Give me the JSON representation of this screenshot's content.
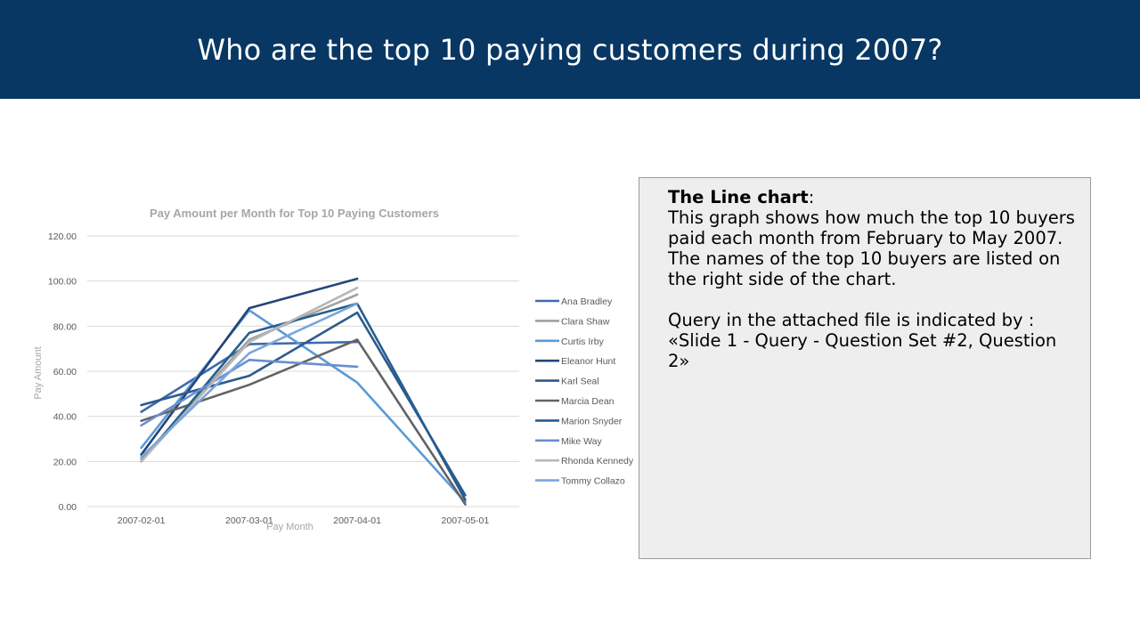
{
  "slide": {
    "title": "Who are the top 10 paying customers during 2007?"
  },
  "textbox": {
    "heading": "The Line chart",
    "heading_suffix": ":",
    "body": "This graph shows how much the top 10 buyers paid each month from February to May 2007. The names of the top 10 buyers are listed on the right side of the chart.",
    "query_line1": "Query in the attached file is indicated by :",
    "query_line2": "«Slide 1 - Query - Question Set #2, Question 2»"
  },
  "chart_data": {
    "type": "line",
    "title": "Pay Amount per Month for Top 10 Paying Customers",
    "xlabel": "Pay Month",
    "ylabel": "Pay Amount",
    "categories": [
      "2007-02-01",
      "2007-03-01",
      "2007-04-01",
      "2007-05-01"
    ],
    "ylim": [
      0,
      120
    ],
    "yticks": [
      "0.00",
      "20.00",
      "40.00",
      "60.00",
      "80.00",
      "100.00",
      "120.00"
    ],
    "grid": true,
    "legend_position": "right",
    "series": [
      {
        "name": "Ana Bradley",
        "color": "#3f6ab0",
        "values": [
          42,
          72,
          73,
          null
        ]
      },
      {
        "name": "Clara Shaw",
        "color": "#a0a0a0",
        "values": [
          21,
          74,
          94,
          null
        ]
      },
      {
        "name": "Curtis Irby",
        "color": "#5b9bd5",
        "values": [
          26,
          87,
          55,
          2
        ]
      },
      {
        "name": "Eleanor Hunt",
        "color": "#264478",
        "values": [
          23,
          88,
          101,
          null
        ]
      },
      {
        "name": "Karl Seal",
        "color": "#2e5a8c",
        "values": [
          45,
          58,
          86,
          5
        ]
      },
      {
        "name": "Marcia Dean",
        "color": "#636363",
        "values": [
          38,
          54,
          74,
          1
        ]
      },
      {
        "name": "Marion Snyder",
        "color": "#255e91",
        "values": [
          20,
          77,
          90,
          3
        ]
      },
      {
        "name": "Mike Way",
        "color": "#698ed0",
        "values": [
          36,
          65,
          62,
          null
        ]
      },
      {
        "name": "Rhonda Kennedy",
        "color": "#b7b7b7",
        "values": [
          20,
          73,
          97,
          null
        ]
      },
      {
        "name": "Tommy Collazo",
        "color": "#7aa6dc",
        "values": [
          22,
          68,
          90,
          null
        ]
      }
    ]
  }
}
